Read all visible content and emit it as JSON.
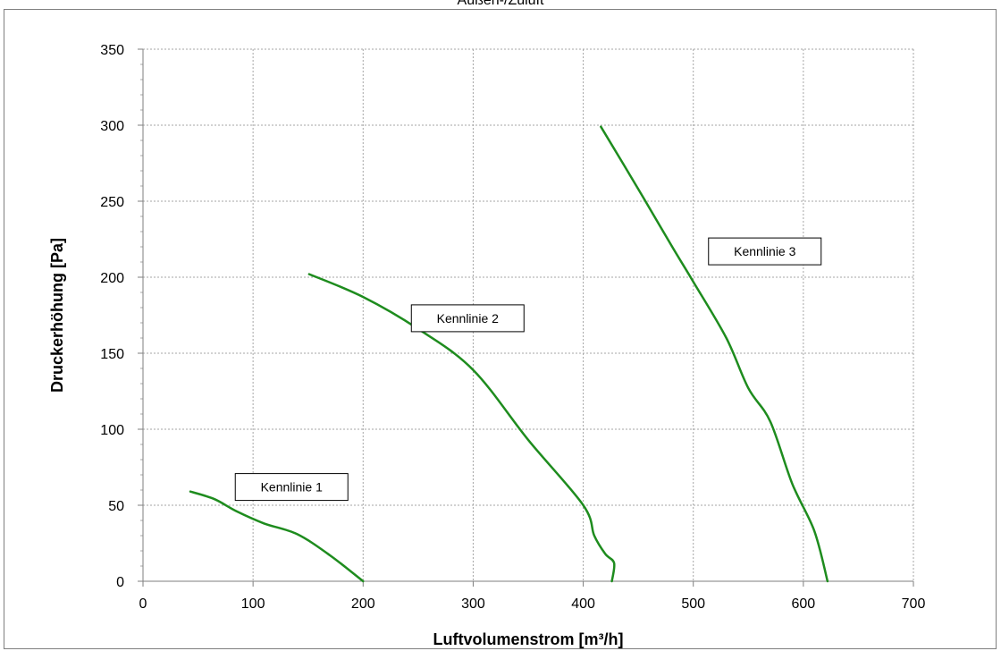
{
  "chart_data": {
    "type": "line",
    "title": "Außen-/Zuluft",
    "xlabel": "Luftvolumenstrom  [m³/h]",
    "ylabel": "Druckerhöhung  [Pa]",
    "xlim": [
      0,
      700
    ],
    "ylim": [
      0,
      350
    ],
    "xticks": [
      0,
      100,
      200,
      300,
      400,
      500,
      600,
      700
    ],
    "yticks": [
      0,
      50,
      100,
      150,
      200,
      250,
      300,
      350
    ],
    "grid": true,
    "series_color": "#1e8c1e",
    "series": [
      {
        "name": "Kennlinie 1",
        "x": [
          43,
          65,
          85,
          110,
          140,
          170,
          200
        ],
        "y": [
          59,
          54,
          46,
          38,
          31,
          17,
          0
        ]
      },
      {
        "name": "Kennlinie 2",
        "x": [
          151,
          200,
          250,
          300,
          350,
          400,
          410,
          420,
          428,
          426
        ],
        "y": [
          202,
          187,
          166,
          139,
          93,
          50,
          30,
          18,
          12,
          0
        ]
      },
      {
        "name": "Kennlinie 3",
        "x": [
          416,
          450,
          480,
          500,
          530,
          550,
          570,
          590,
          610,
          622
        ],
        "y": [
          299,
          258,
          221,
          197,
          160,
          127,
          105,
          64,
          33,
          0
        ]
      }
    ],
    "annotations": [
      {
        "text": "Kennlinie 1",
        "x": 135,
        "y": 62
      },
      {
        "text": "Kennlinie 2",
        "x": 295,
        "y": 173
      },
      {
        "text": "Kennlinie 3",
        "x": 565,
        "y": 217
      }
    ]
  }
}
